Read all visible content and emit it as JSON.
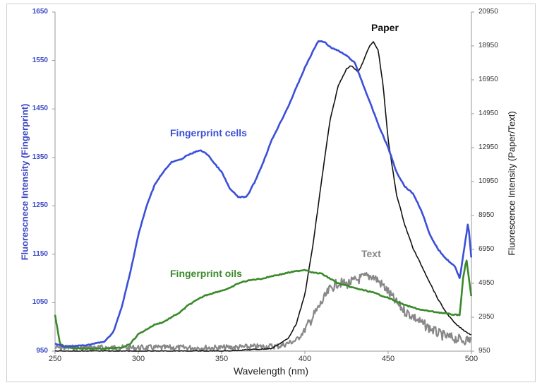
{
  "chart_data": {
    "type": "line",
    "title": "",
    "xlabel": "Wavelength (nm)",
    "ylabel_left": "Fluorescnece Intensity (Fingerprint)",
    "ylabel_right": "Fluorescence Intensity (Paper/Text)",
    "xlim": [
      250,
      500
    ],
    "ylim_left": [
      950,
      1650
    ],
    "ylim_right": [
      950,
      20950
    ],
    "x_ticks": [
      250,
      300,
      350,
      400,
      450,
      500
    ],
    "y_ticks_left": [
      950,
      1050,
      1150,
      1250,
      1350,
      1450,
      1550,
      1650
    ],
    "y_ticks_right": [
      950,
      2950,
      4950,
      6950,
      8950,
      10950,
      12950,
      14950,
      16950,
      18950,
      20950
    ],
    "grid": false,
    "legend": "inline annotations",
    "series": [
      {
        "name": "Fingerprint cells",
        "axis": "left",
        "color": "#3b4fd8",
        "x": [
          250,
          255,
          260,
          270,
          280,
          285,
          290,
          295,
          300,
          305,
          310,
          315,
          320,
          325,
          330,
          337,
          342,
          345,
          350,
          355,
          360,
          365,
          370,
          375,
          380,
          385,
          390,
          395,
          400,
          405,
          408,
          412,
          415,
          420,
          425,
          430,
          435,
          440,
          445,
          450,
          455,
          460,
          465,
          470,
          475,
          480,
          485,
          490,
          493,
          496,
          498,
          500
        ],
        "y": [
          965,
          960,
          960,
          963,
          970,
          990,
          1040,
          1110,
          1190,
          1250,
          1295,
          1320,
          1340,
          1345,
          1355,
          1365,
          1355,
          1340,
          1320,
          1285,
          1268,
          1268,
          1300,
          1340,
          1385,
          1420,
          1455,
          1495,
          1535,
          1570,
          1590,
          1588,
          1578,
          1570,
          1560,
          1545,
          1500,
          1455,
          1410,
          1370,
          1320,
          1290,
          1275,
          1240,
          1190,
          1160,
          1140,
          1125,
          1100,
          1170,
          1215,
          1140
        ]
      },
      {
        "name": "Fingerprint oils",
        "axis": "left",
        "color": "#3a8a2a",
        "x": [
          250,
          253,
          256,
          260,
          270,
          280,
          290,
          295,
          300,
          305,
          310,
          315,
          320,
          325,
          330,
          335,
          340,
          345,
          350,
          355,
          360,
          365,
          370,
          375,
          380,
          385,
          390,
          395,
          400,
          405,
          410,
          415,
          420,
          425,
          430,
          440,
          450,
          460,
          470,
          480,
          490,
          493,
          495,
          497,
          500
        ],
        "y": [
          1025,
          965,
          958,
          957,
          955,
          955,
          957,
          965,
          985,
          995,
          1005,
          1010,
          1020,
          1030,
          1045,
          1055,
          1065,
          1070,
          1075,
          1080,
          1090,
          1095,
          1098,
          1100,
          1105,
          1108,
          1112,
          1115,
          1118,
          1112,
          1110,
          1100,
          1090,
          1085,
          1080,
          1072,
          1060,
          1045,
          1035,
          1030,
          1025,
          1025,
          1100,
          1140,
          1060
        ]
      },
      {
        "name": "Paper",
        "axis": "right",
        "color": "#111111",
        "x": [
          250,
          300,
          350,
          380,
          390,
          395,
          400,
          405,
          410,
          415,
          420,
          425,
          428,
          432,
          435,
          438,
          441,
          444,
          447,
          450,
          455,
          460,
          465,
          470,
          475,
          480,
          485,
          490,
          495,
          500
        ],
        "y": [
          950,
          950,
          950,
          1100,
          1700,
          2600,
          4300,
          7300,
          11000,
          14500,
          16600,
          17600,
          17800,
          17400,
          18000,
          18800,
          19200,
          18700,
          16600,
          13400,
          10200,
          8400,
          7000,
          6000,
          5000,
          4000,
          3200,
          2600,
          2200,
          1900
        ]
      },
      {
        "name": "Text",
        "axis": "right",
        "color": "#888888",
        "x": [
          250,
          300,
          350,
          385,
          395,
          400,
          405,
          410,
          415,
          420,
          425,
          430,
          435,
          440,
          443,
          448,
          455,
          460,
          465,
          470,
          475,
          480,
          485,
          490,
          495,
          500
        ],
        "y": [
          1150,
          1150,
          1150,
          1250,
          1600,
          2200,
          3000,
          3800,
          4600,
          5000,
          4900,
          5100,
          5300,
          5400,
          5200,
          4700,
          3800,
          3300,
          3000,
          2600,
          2300,
          2000,
          1800,
          1700,
          1600,
          1650
        ]
      }
    ],
    "annotations": [
      {
        "text": "Fingerprint cells",
        "color": "#3b4fd8"
      },
      {
        "text": "Fingerprint oils",
        "color": "#3a8a2a"
      },
      {
        "text": "Paper",
        "color": "#111111"
      },
      {
        "text": "Text",
        "color": "#888888"
      }
    ]
  }
}
